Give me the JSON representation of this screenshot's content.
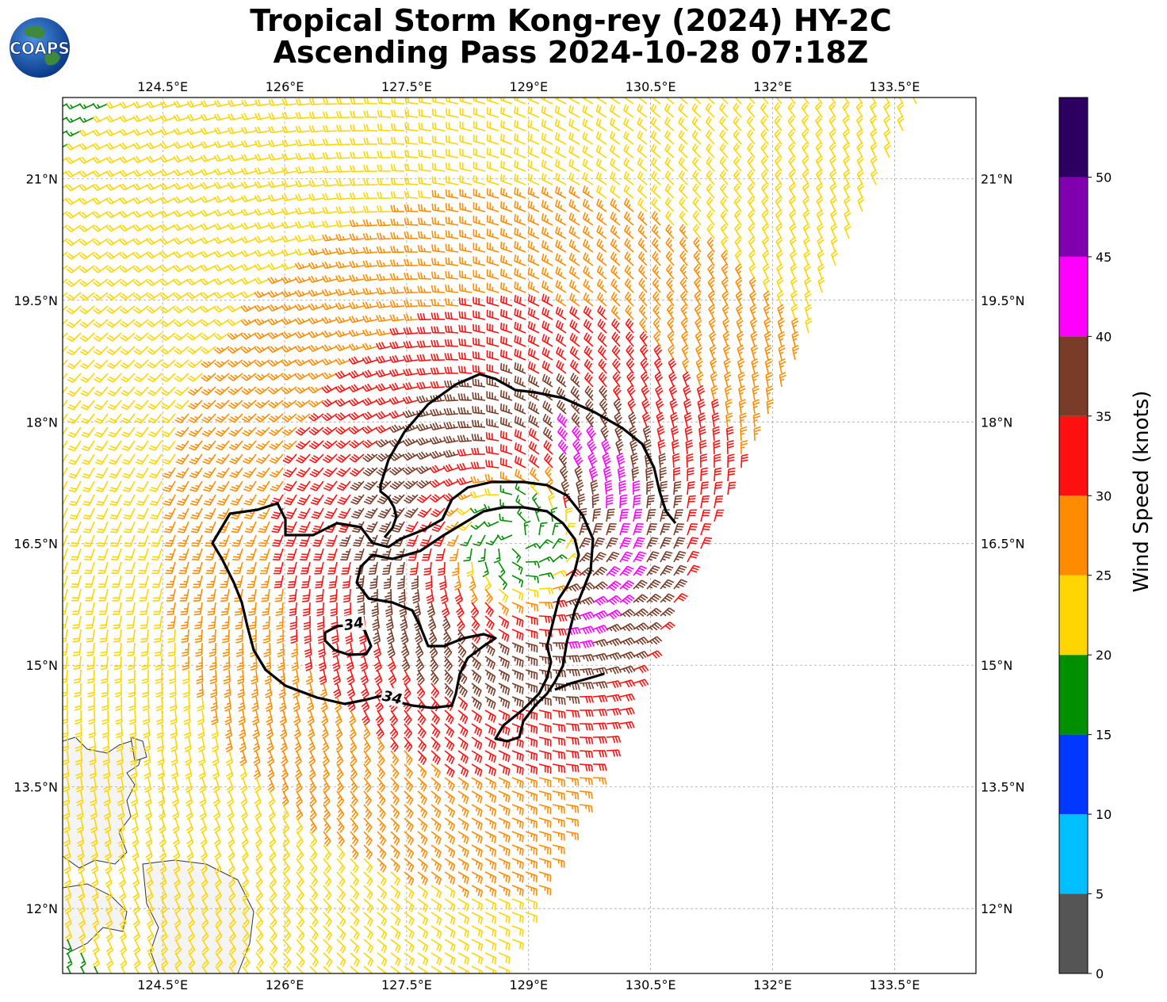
{
  "title": {
    "line1": "Tropical Storm Kong-rey (2024) HY-2C",
    "line2": "Ascending Pass 2024-10-28 07:18Z"
  },
  "logo": {
    "text": "COAPS"
  },
  "axes": {
    "lon_ticks": [
      "124.5°E",
      "126°E",
      "127.5°E",
      "129°E",
      "130.5°E",
      "132°E",
      "133.5°E"
    ],
    "lat_ticks": [
      "21°N",
      "19.5°N",
      "18°N",
      "16.5°N",
      "15°N",
      "13.5°N",
      "12°N"
    ],
    "lon_values": [
      124.5,
      126,
      127.5,
      129,
      130.5,
      132,
      133.5
    ],
    "lat_values": [
      21,
      19.5,
      18,
      16.5,
      15,
      13.5,
      12
    ],
    "lon_range": [
      123.27,
      134.5
    ],
    "lat_range": [
      11.2,
      22.0
    ]
  },
  "storm_center": {
    "lon": 128.85,
    "lat": 16.55
  },
  "contour": {
    "label": "34",
    "level_knots": 34
  },
  "colorbar": {
    "title": "Wind Speed (knots)",
    "tick_labels": [
      "0",
      "5",
      "10",
      "15",
      "20",
      "25",
      "30",
      "35",
      "40",
      "45",
      "50"
    ],
    "bins": [
      {
        "min": 0,
        "max": 5,
        "color": "#555555"
      },
      {
        "min": 5,
        "max": 10,
        "color": "#00bfff"
      },
      {
        "min": 10,
        "max": 15,
        "color": "#0038ff"
      },
      {
        "min": 15,
        "max": 20,
        "color": "#008f00"
      },
      {
        "min": 20,
        "max": 25,
        "color": "#ffd500"
      },
      {
        "min": 25,
        "max": 30,
        "color": "#ff8c00"
      },
      {
        "min": 30,
        "max": 35,
        "color": "#ff1010"
      },
      {
        "min": 35,
        "max": 40,
        "color": "#7a3b28"
      },
      {
        "min": 40,
        "max": 45,
        "color": "#ff00ff"
      },
      {
        "min": 45,
        "max": 50,
        "color": "#8000b0"
      },
      {
        "min": 50,
        "max": 55,
        "color": "#2b0060"
      }
    ]
  }
}
